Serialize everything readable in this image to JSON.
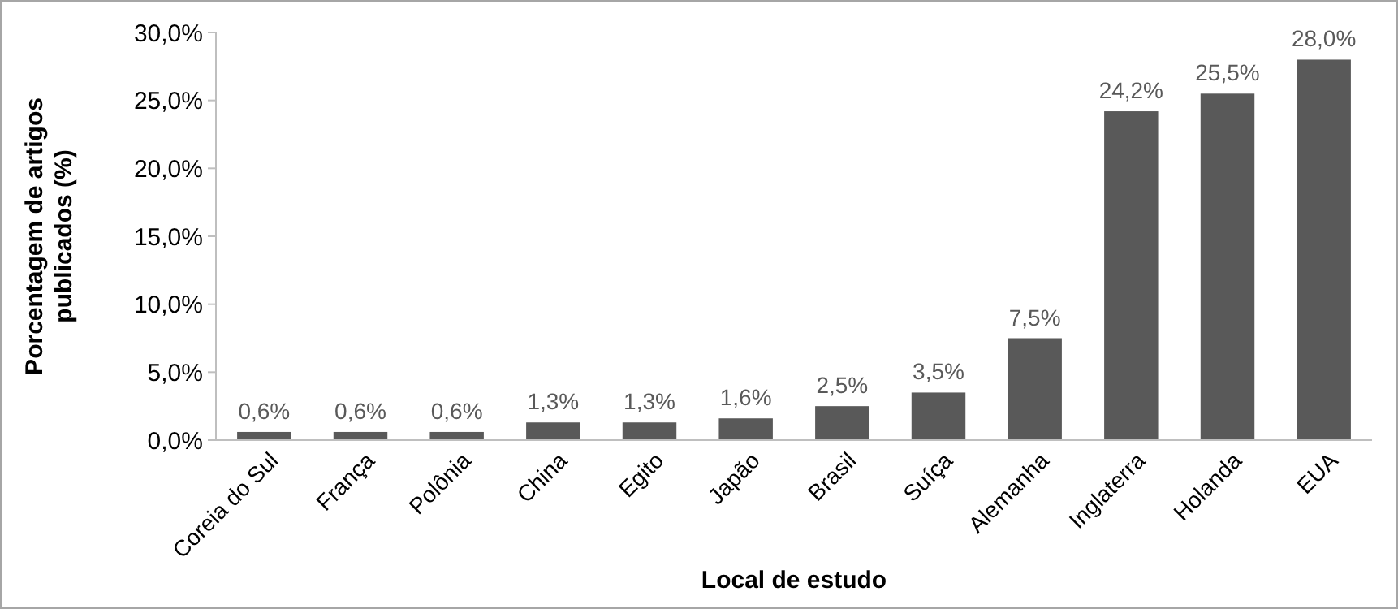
{
  "chart_data": {
    "type": "bar",
    "xlabel": "Local de estudo",
    "ylabel": "Porcentagem de artigos publicados (%)",
    "categories": [
      "Coreia do Sul",
      "França",
      "Polônia",
      "China",
      "Egito",
      "Japão",
      "Brasil",
      "Suíça",
      "Alemanha",
      "Inglaterra",
      "Holanda",
      "EUA"
    ],
    "values": [
      0.6,
      0.6,
      0.6,
      1.3,
      1.3,
      1.6,
      2.5,
      3.5,
      7.5,
      24.2,
      25.5,
      28.0
    ],
    "value_labels": [
      "0,6%",
      "0,6%",
      "0,6%",
      "1,3%",
      "1,3%",
      "1,6%",
      "2,5%",
      "3,5%",
      "7,5%",
      "24,2%",
      "25,5%",
      "28,0%"
    ],
    "color": "#595959",
    "ylim": [
      0,
      30
    ],
    "yticks": [
      {
        "value": 0,
        "label": "0,0%"
      },
      {
        "value": 5,
        "label": "5,0%"
      },
      {
        "value": 10,
        "label": "10,0%"
      },
      {
        "value": 15,
        "label": "15,0%"
      },
      {
        "value": 20,
        "label": "20,0%"
      },
      {
        "value": 25,
        "label": "25,0%"
      },
      {
        "value": 30,
        "label": "30,0%"
      }
    ],
    "grid": false
  }
}
